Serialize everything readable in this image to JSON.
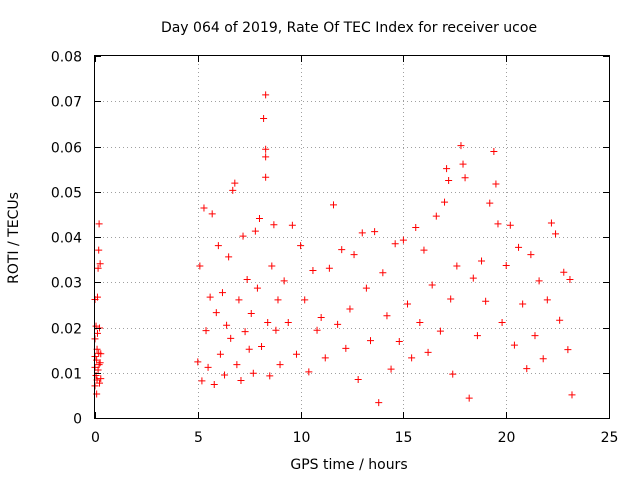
{
  "chart_data": {
    "type": "scatter",
    "title": "Day 064 of 2019, Rate Of TEC Index for receiver ucoe",
    "xlabel": "GPS time / hours",
    "ylabel": "ROTI / TECUs",
    "xlim": [
      0,
      25
    ],
    "ylim": [
      0,
      0.08
    ],
    "x_ticks": [
      0,
      5,
      10,
      15,
      20,
      25
    ],
    "x_tick_labels": [
      "0",
      "5",
      "10",
      "15",
      "20",
      "25"
    ],
    "y_ticks": [
      0,
      0.01,
      0.02,
      0.03,
      0.04,
      0.05,
      0.06,
      0.07,
      0.08
    ],
    "y_tick_labels": [
      "0",
      "0.01",
      "0.02",
      "0.03",
      "0.04",
      "0.05",
      "0.06",
      "0.07",
      "0.08"
    ],
    "grid": true,
    "marker": "+",
    "color": "#ff0000",
    "series": [
      {
        "name": "ROTI",
        "points": [
          [
            0.0,
            0.0262
          ],
          [
            0.0,
            0.0112
          ],
          [
            0.0,
            0.0071
          ],
          [
            0.0,
            0.0175
          ],
          [
            0.0,
            0.0136
          ],
          [
            0.05,
            0.0094
          ],
          [
            0.05,
            0.0203
          ],
          [
            0.08,
            0.0053
          ],
          [
            0.08,
            0.0128
          ],
          [
            0.1,
            0.0152
          ],
          [
            0.1,
            0.0084
          ],
          [
            0.12,
            0.0187
          ],
          [
            0.12,
            0.0267
          ],
          [
            0.15,
            0.0331
          ],
          [
            0.15,
            0.0106
          ],
          [
            0.18,
            0.0371
          ],
          [
            0.18,
            0.0143
          ],
          [
            0.2,
            0.0429
          ],
          [
            0.2,
            0.0118
          ],
          [
            0.22,
            0.0077
          ],
          [
            0.22,
            0.0199
          ],
          [
            0.25,
            0.0341
          ],
          [
            0.25,
            0.0122
          ],
          [
            0.28,
            0.0142
          ],
          [
            0.28,
            0.0087
          ],
          [
            5.0,
            0.0124
          ],
          [
            5.1,
            0.0336
          ],
          [
            5.2,
            0.0082
          ],
          [
            5.3,
            0.0464
          ],
          [
            5.4,
            0.0193
          ],
          [
            5.5,
            0.0112
          ],
          [
            5.6,
            0.0267
          ],
          [
            5.7,
            0.0451
          ],
          [
            5.8,
            0.0074
          ],
          [
            5.9,
            0.0233
          ],
          [
            6.0,
            0.0381
          ],
          [
            6.1,
            0.0141
          ],
          [
            6.2,
            0.0277
          ],
          [
            6.3,
            0.0095
          ],
          [
            6.4,
            0.0205
          ],
          [
            6.5,
            0.0356
          ],
          [
            6.6,
            0.0176
          ],
          [
            6.7,
            0.0503
          ],
          [
            6.8,
            0.0519
          ],
          [
            6.9,
            0.0118
          ],
          [
            7.0,
            0.0261
          ],
          [
            7.1,
            0.0083
          ],
          [
            7.2,
            0.0402
          ],
          [
            7.3,
            0.0191
          ],
          [
            7.4,
            0.0306
          ],
          [
            7.5,
            0.0152
          ],
          [
            7.6,
            0.0231
          ],
          [
            7.7,
            0.0099
          ],
          [
            7.8,
            0.0413
          ],
          [
            7.9,
            0.0287
          ],
          [
            8.0,
            0.0441
          ],
          [
            8.1,
            0.0158
          ],
          [
            8.2,
            0.0662
          ],
          [
            8.3,
            0.0714
          ],
          [
            8.3,
            0.0594
          ],
          [
            8.3,
            0.0577
          ],
          [
            8.3,
            0.0532
          ],
          [
            8.4,
            0.0211
          ],
          [
            8.5,
            0.0093
          ],
          [
            8.6,
            0.0336
          ],
          [
            8.7,
            0.0427
          ],
          [
            8.8,
            0.0194
          ],
          [
            8.9,
            0.0261
          ],
          [
            9.0,
            0.0118
          ],
          [
            9.2,
            0.0303
          ],
          [
            9.4,
            0.0211
          ],
          [
            9.6,
            0.0426
          ],
          [
            9.8,
            0.0141
          ],
          [
            10.0,
            0.0381
          ],
          [
            10.2,
            0.0261
          ],
          [
            10.4,
            0.0102
          ],
          [
            10.6,
            0.0326
          ],
          [
            10.8,
            0.0194
          ],
          [
            11.0,
            0.0222
          ],
          [
            11.2,
            0.0133
          ],
          [
            11.4,
            0.0331
          ],
          [
            11.6,
            0.0471
          ],
          [
            11.8,
            0.0207
          ],
          [
            12.0,
            0.0372
          ],
          [
            12.2,
            0.0154
          ],
          [
            12.4,
            0.0241
          ],
          [
            12.6,
            0.0361
          ],
          [
            12.8,
            0.0085
          ],
          [
            13.0,
            0.0409
          ],
          [
            13.2,
            0.0287
          ],
          [
            13.4,
            0.0171
          ],
          [
            13.6,
            0.0412
          ],
          [
            13.8,
            0.0034
          ],
          [
            14.0,
            0.0321
          ],
          [
            14.2,
            0.0226
          ],
          [
            14.4,
            0.0108
          ],
          [
            14.6,
            0.0385
          ],
          [
            14.8,
            0.0169
          ],
          [
            15.0,
            0.0393
          ],
          [
            15.2,
            0.0252
          ],
          [
            15.4,
            0.0133
          ],
          [
            15.6,
            0.0421
          ],
          [
            15.8,
            0.0211
          ],
          [
            16.0,
            0.0371
          ],
          [
            16.2,
            0.0145
          ],
          [
            16.4,
            0.0294
          ],
          [
            16.6,
            0.0446
          ],
          [
            16.8,
            0.0192
          ],
          [
            17.0,
            0.0477
          ],
          [
            17.1,
            0.0551
          ],
          [
            17.2,
            0.0525
          ],
          [
            17.3,
            0.0263
          ],
          [
            17.4,
            0.0097
          ],
          [
            17.6,
            0.0336
          ],
          [
            17.8,
            0.0602
          ],
          [
            17.9,
            0.0561
          ],
          [
            18.0,
            0.0531
          ],
          [
            18.2,
            0.0044
          ],
          [
            18.4,
            0.0309
          ],
          [
            18.6,
            0.0182
          ],
          [
            18.8,
            0.0347
          ],
          [
            19.0,
            0.0258
          ],
          [
            19.2,
            0.0475
          ],
          [
            19.4,
            0.0589
          ],
          [
            19.5,
            0.0517
          ],
          [
            19.6,
            0.0429
          ],
          [
            19.8,
            0.0211
          ],
          [
            20.0,
            0.0337
          ],
          [
            20.2,
            0.0426
          ],
          [
            20.4,
            0.0161
          ],
          [
            20.6,
            0.0377
          ],
          [
            20.8,
            0.0252
          ],
          [
            21.0,
            0.0109
          ],
          [
            21.2,
            0.0361
          ],
          [
            21.4,
            0.0182
          ],
          [
            21.6,
            0.0303
          ],
          [
            21.8,
            0.0131
          ],
          [
            22.0,
            0.0261
          ],
          [
            22.2,
            0.0431
          ],
          [
            22.4,
            0.0407
          ],
          [
            22.6,
            0.0216
          ],
          [
            22.8,
            0.0322
          ],
          [
            23.0,
            0.0151
          ],
          [
            23.1,
            0.0306
          ],
          [
            23.2,
            0.0051
          ]
        ]
      }
    ]
  }
}
